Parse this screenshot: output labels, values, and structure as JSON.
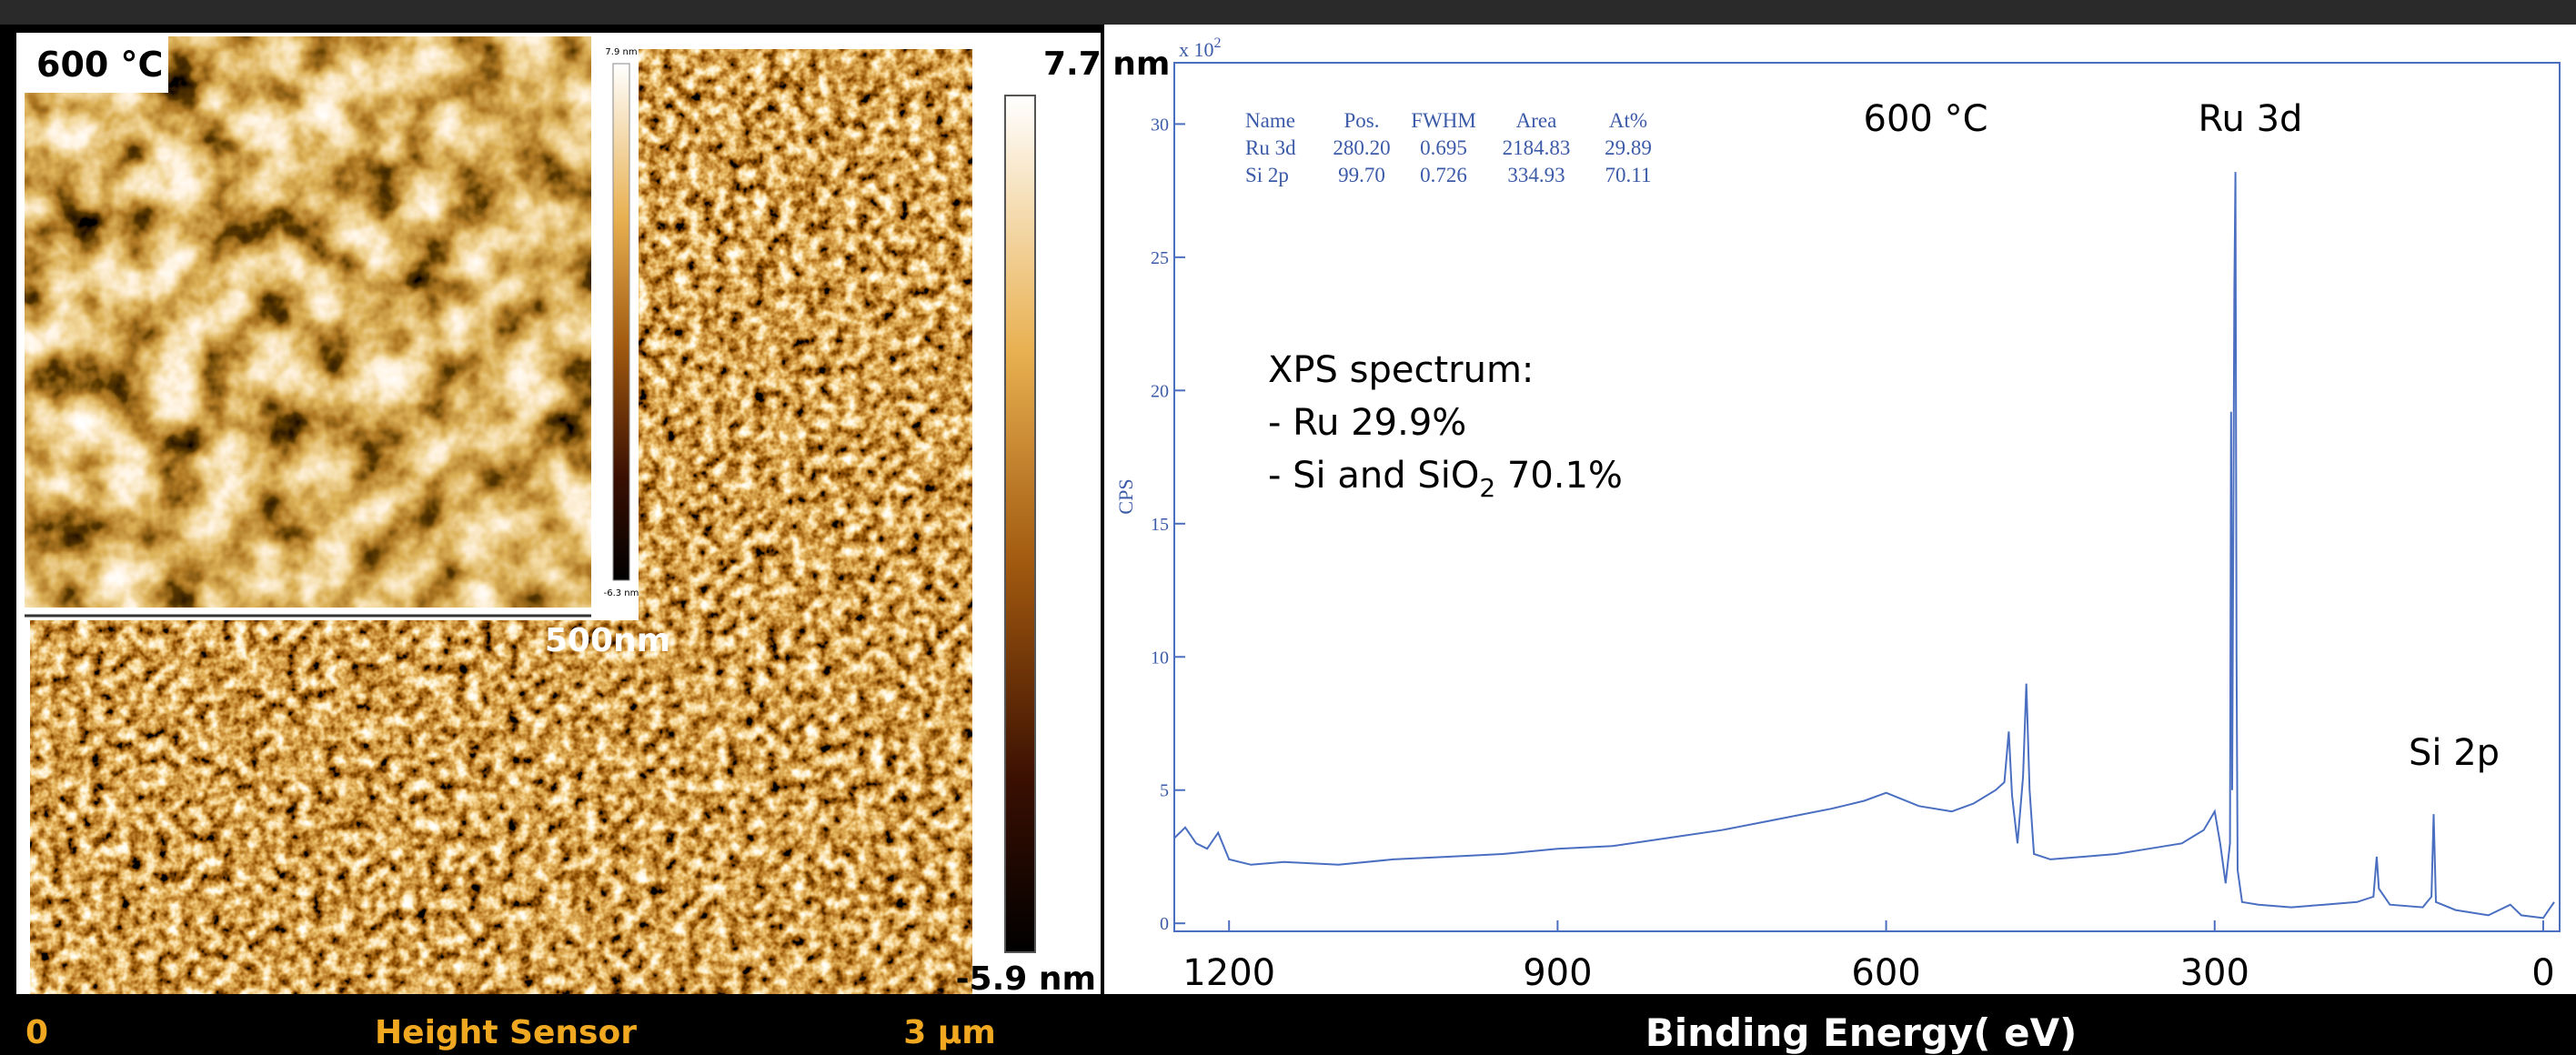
{
  "afm": {
    "inset_label": "600 °C",
    "inset_colorbar_max": "7.9 nm",
    "inset_colorbar_min": "-6.3 nm",
    "scale_bar": "500nm",
    "colorbar_max": "7.7 nm",
    "colorbar_min": "-5.9 nm",
    "footer": [
      "0",
      "Height Sensor",
      "3 µm"
    ]
  },
  "chart_data": {
    "type": "line",
    "title": "600 °C",
    "x_label": "Binding Energy( eV)",
    "y_label": "CPS",
    "y_multiplier": "x 10",
    "y_multiplier_exp": "2",
    "peak_labels": [
      "Ru 3d",
      "Si 2p"
    ],
    "note": {
      "heading": "XPS spectrum:",
      "ru": "- Ru 29.9%",
      "si_parts": [
        "- Si and SiO",
        "2",
        " 70.1%"
      ]
    },
    "fit_table": {
      "header": [
        "Name",
        "Pos.",
        "FWHM",
        "Area",
        "At%"
      ],
      "rows": [
        [
          "Ru 3d",
          "280.20",
          "0.695",
          "2184.83",
          "29.89"
        ],
        [
          "Si 2p",
          "99.70",
          "0.726",
          "334.93",
          "70.11"
        ]
      ]
    },
    "color": "#4a6fc1",
    "x": [
      1250,
      1240,
      1230,
      1220,
      1210,
      1200,
      1180,
      1150,
      1100,
      1050,
      1000,
      950,
      900,
      850,
      800,
      750,
      700,
      650,
      620,
      600,
      570,
      540,
      520,
      500,
      492,
      488,
      485,
      480,
      475,
      472,
      469,
      465,
      450,
      420,
      390,
      360,
      330,
      310,
      300,
      295,
      290,
      286,
      285,
      284,
      282,
      281,
      280,
      279,
      275,
      260,
      230,
      200,
      170,
      155,
      152,
      150,
      140,
      110,
      102,
      100,
      98,
      80,
      50,
      30,
      20,
      0,
      -10
    ],
    "values": [
      3.2,
      3.6,
      3.0,
      2.8,
      3.4,
      2.4,
      2.2,
      2.3,
      2.2,
      2.4,
      2.5,
      2.6,
      2.8,
      2.9,
      3.2,
      3.5,
      3.9,
      4.3,
      4.6,
      4.9,
      4.4,
      4.2,
      4.5,
      5.0,
      5.3,
      7.2,
      4.8,
      3.0,
      5.5,
      9.0,
      5.0,
      2.6,
      2.4,
      2.5,
      2.6,
      2.8,
      3.0,
      3.5,
      4.2,
      3.0,
      1.5,
      3.0,
      19.2,
      5.0,
      23.8,
      28.2,
      10.0,
      2.0,
      0.8,
      0.7,
      0.6,
      0.7,
      0.8,
      1.0,
      2.5,
      1.3,
      0.7,
      0.6,
      1.0,
      4.1,
      0.8,
      0.5,
      0.3,
      0.7,
      0.3,
      0.2,
      0.8
    ],
    "xlim": [
      1250,
      -15
    ],
    "ylim": [
      -0.3,
      32.3
    ],
    "xticks": [
      1200,
      900,
      600,
      300,
      0
    ],
    "yticks": [
      0,
      5,
      10,
      15,
      20,
      25,
      30
    ]
  }
}
